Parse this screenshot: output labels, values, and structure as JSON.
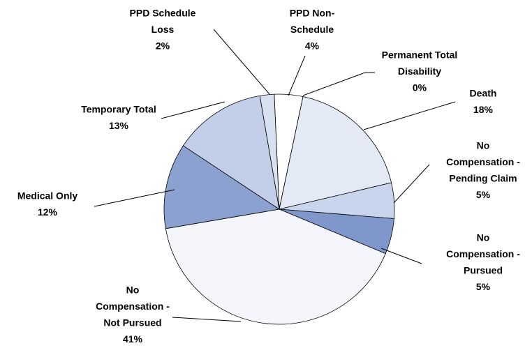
{
  "chart_data": {
    "type": "pie",
    "categories": [
      [
        "PPD Non-",
        "Schedule"
      ],
      [
        "Permanent Total",
        "Disability"
      ],
      [
        "Death"
      ],
      [
        "No",
        "Compensation -",
        "Pending Claim"
      ],
      [
        "No",
        "Compensation -",
        "Pursued"
      ],
      [
        "No",
        "Compensation -",
        "Not Pursued"
      ],
      [
        "Medical Only"
      ],
      [
        "Temporary Total"
      ],
      [
        "PPD Schedule",
        "Loss"
      ]
    ],
    "values": [
      4,
      0,
      18,
      5,
      5,
      41,
      12,
      13,
      2
    ],
    "value_labels": [
      "4%",
      "0%",
      "18%",
      "5%",
      "5%",
      "41%",
      "12%",
      "13%",
      "2%"
    ],
    "colors": [
      "#ffffff",
      "#b7c6e6",
      "#e3eaf6",
      "#c9d5ec",
      "#7f97cb",
      "#f4f6fb",
      "#8ba1d0",
      "#c3cfe8",
      "#d9e1f1"
    ]
  }
}
